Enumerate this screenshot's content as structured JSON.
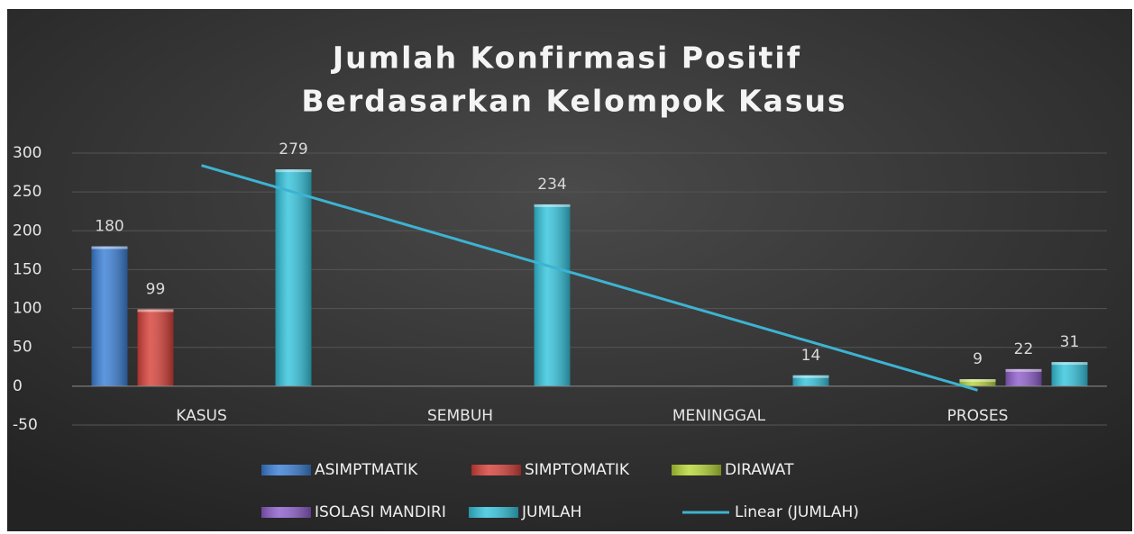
{
  "chart_data": {
    "type": "bar",
    "title": [
      "Jumlah Konfirmasi Positif",
      "Berdasarkan Kelompok Kasus"
    ],
    "categories": [
      "KASUS",
      "SEMBUH",
      "MENINGGAL",
      "PROSES"
    ],
    "series": [
      {
        "name": "ASIMPTMATIK",
        "color": "#3b7fd6",
        "values": [
          180,
          null,
          null,
          null
        ]
      },
      {
        "name": "SIMPTOMATIK",
        "color": "#d8413a",
        "values": [
          99,
          null,
          null,
          null
        ]
      },
      {
        "name": "DIRAWAT",
        "color": "#b7d636",
        "values": [
          null,
          null,
          null,
          9
        ]
      },
      {
        "name": "ISOLASI MANDIRI",
        "color": "#8f5fcc",
        "values": [
          null,
          null,
          null,
          22
        ]
      },
      {
        "name": "JUMLAH",
        "color": "#35c4dd",
        "values": [
          279,
          234,
          14,
          31
        ]
      },
      {
        "name": "Linear (JUMLAH)",
        "type": "line",
        "color": "#3db3d1",
        "values": [
          284.1,
          187.7,
          91.3,
          -5.1
        ]
      }
    ],
    "ylim": [
      -50,
      300
    ],
    "yticks": [
      -50,
      0,
      50,
      100,
      150,
      200,
      250,
      300
    ],
    "grid": true
  }
}
